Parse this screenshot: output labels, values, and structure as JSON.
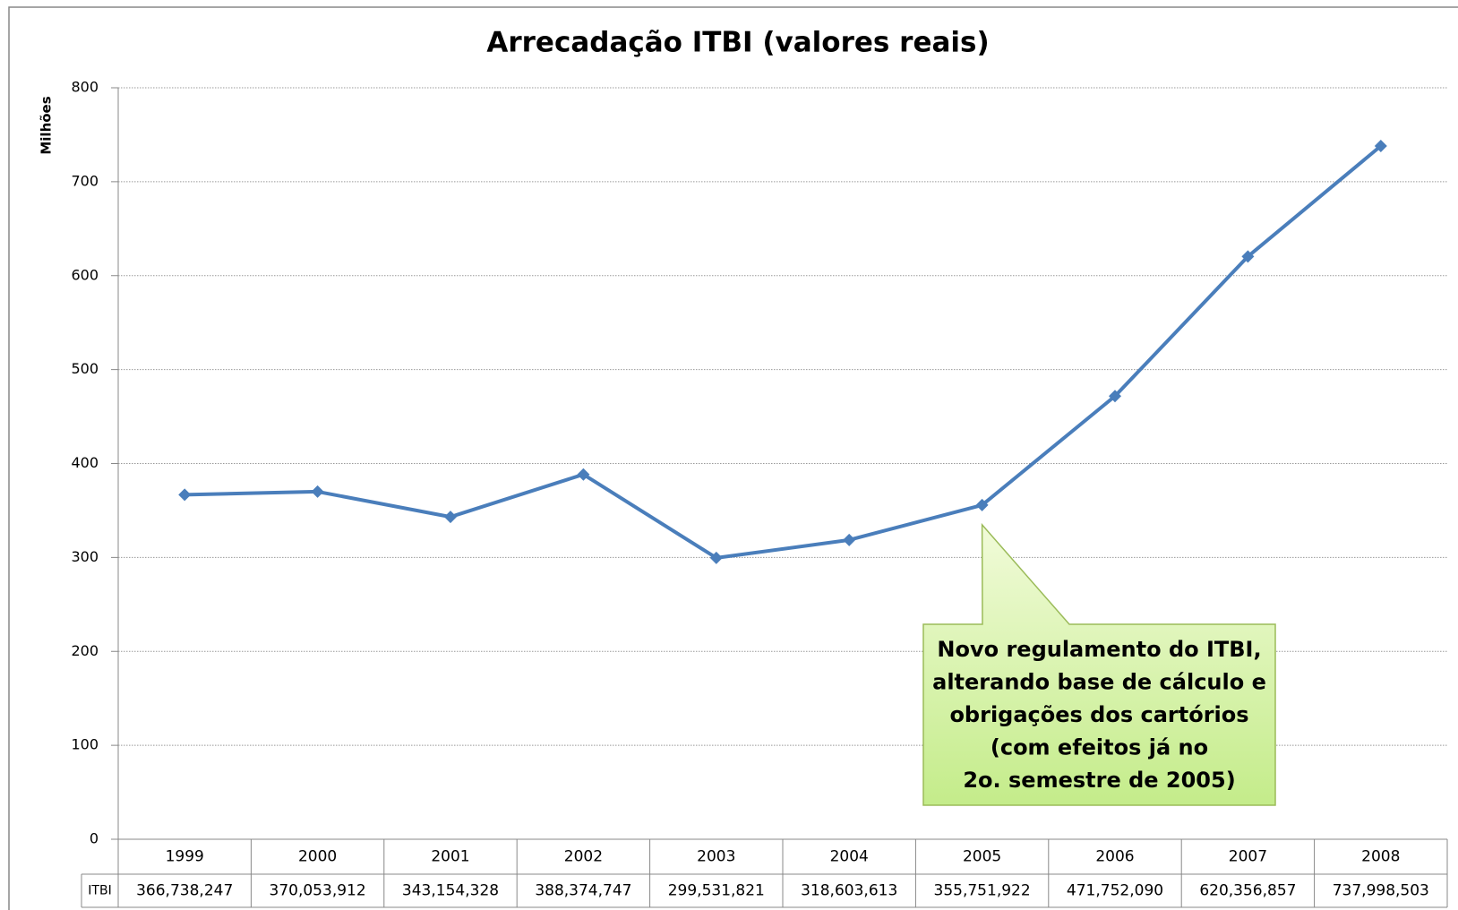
{
  "chart_data": {
    "type": "line",
    "title": "Arrecadação ITBI (valores reais)",
    "y_label": "Milhões",
    "categories": [
      "1999",
      "2000",
      "2001",
      "2002",
      "2003",
      "2004",
      "2005",
      "2006",
      "2007",
      "2008"
    ],
    "series": [
      {
        "name": "ITBI",
        "color": "#4a7ebb",
        "values": [
          366.738247,
          370.053912,
          343.154328,
          388.374747,
          299.531821,
          318.603613,
          355.751922,
          471.75209,
          620.356857,
          737.998503
        ],
        "value_labels": [
          "366,738,247",
          "370,053,912",
          "343,154,328",
          "388,374,747",
          "299,531,821",
          "318,603,613",
          "355,751,922",
          "471,752,090",
          "620,356,857",
          "737,998,503"
        ]
      }
    ],
    "ylim": [
      0,
      800
    ],
    "yticks": [
      0,
      100,
      200,
      300,
      400,
      500,
      600,
      700,
      800
    ],
    "grid": true,
    "annotation": {
      "category_index": 6,
      "lines": [
        "Novo regulamento do ITBI,",
        "alterando base de cálculo e",
        "obrigações dos cartórios",
        "(com efeitos já no",
        "2o. semestre de 2005)"
      ]
    }
  }
}
